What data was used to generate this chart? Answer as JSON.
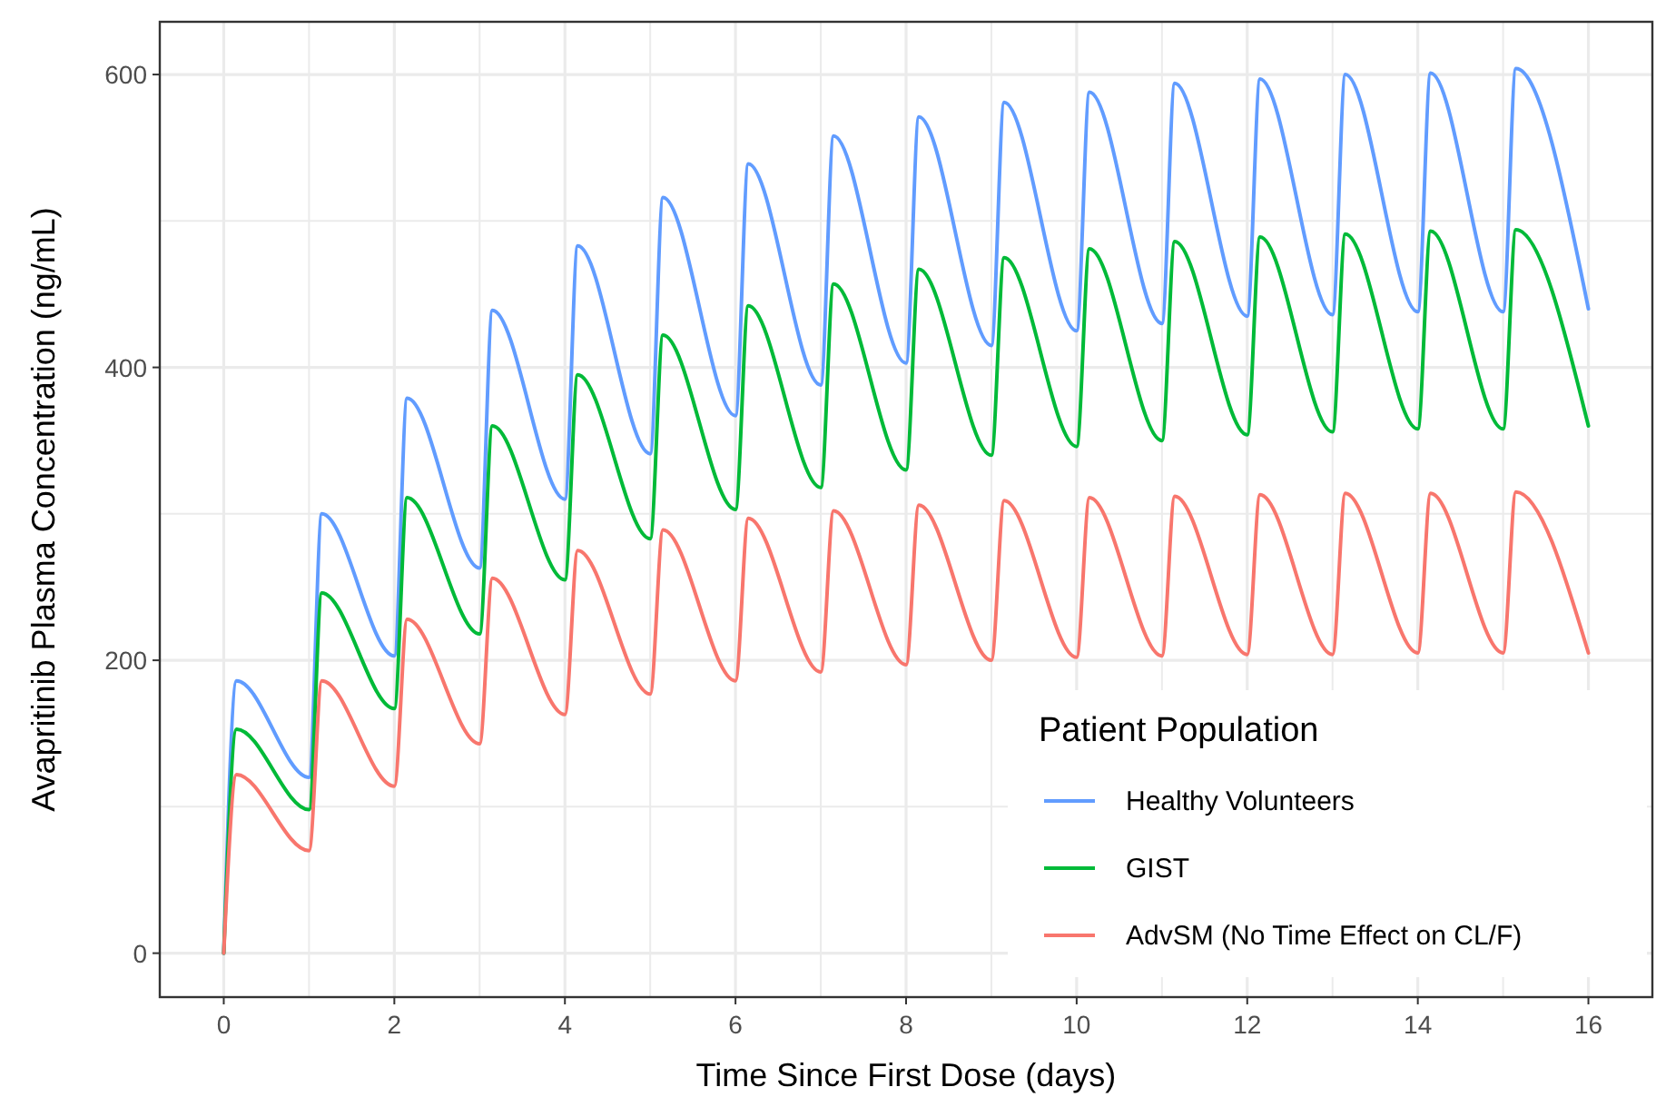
{
  "chart_data": {
    "type": "line",
    "xlabel": "Time Since First Dose (days)",
    "ylabel": "Avapritinib Plasma Concentration (ng/mL)",
    "legend_title": "Patient Population",
    "legend": "bottom right",
    "grid": true,
    "line_style": "solid",
    "marker": "none",
    "x": [
      0,
      0.15,
      1,
      1.15,
      2,
      2.15,
      3,
      3.15,
      4,
      4.15,
      5,
      5.15,
      6,
      6.15,
      7,
      7.15,
      8,
      8.15,
      9,
      9.15,
      10,
      10.15,
      11,
      11.15,
      12,
      12.15,
      13,
      13.15,
      14,
      14.15,
      15,
      15.15,
      16
    ],
    "xlim": [
      -0.75,
      16.75
    ],
    "xticks": [
      0,
      {
        "value": 1,
        "label": null
      },
      2,
      {
        "value": 3,
        "label": null
      },
      4,
      {
        "value": 5,
        "label": null
      },
      6,
      {
        "value": 7,
        "label": null
      },
      8,
      {
        "value": 9,
        "label": null
      },
      10,
      {
        "value": 11,
        "label": null
      },
      12,
      {
        "value": 13,
        "label": null
      },
      14,
      {
        "value": 15,
        "label": null
      },
      16
    ],
    "ylim": [
      -30,
      636
    ],
    "yticks": [
      0,
      {
        "value": 100,
        "label": null
      },
      200,
      {
        "value": 300,
        "label": null
      },
      400,
      {
        "value": 500,
        "label": null
      },
      600
    ],
    "series": [
      {
        "name": "Healthy Volunteers",
        "color": "#619cff",
        "values": [
          0,
          186,
          120,
          300,
          203,
          379,
          263,
          439,
          310,
          483,
          341,
          516,
          367,
          539,
          388,
          558,
          403,
          571,
          415,
          581,
          425,
          588,
          430,
          594,
          435,
          597,
          436,
          600,
          438,
          601,
          438,
          604,
          440
        ]
      },
      {
        "name": "GIST",
        "color": "#00ba38",
        "values": [
          0,
          153,
          98,
          246,
          167,
          311,
          218,
          360,
          255,
          395,
          283,
          422,
          303,
          442,
          318,
          457,
          330,
          467,
          340,
          475,
          346,
          481,
          350,
          486,
          354,
          489,
          356,
          491,
          358,
          493,
          358,
          494,
          360
        ]
      },
      {
        "name": "AdvSM (No Time Effect on CL/F)",
        "color": "#f8766d",
        "values": [
          0,
          122,
          70,
          186,
          114,
          228,
          143,
          256,
          163,
          275,
          177,
          289,
          186,
          297,
          192,
          302,
          197,
          306,
          200,
          309,
          202,
          311,
          203,
          312,
          204,
          313,
          204,
          314,
          205,
          314,
          205,
          315,
          205
        ]
      }
    ]
  }
}
